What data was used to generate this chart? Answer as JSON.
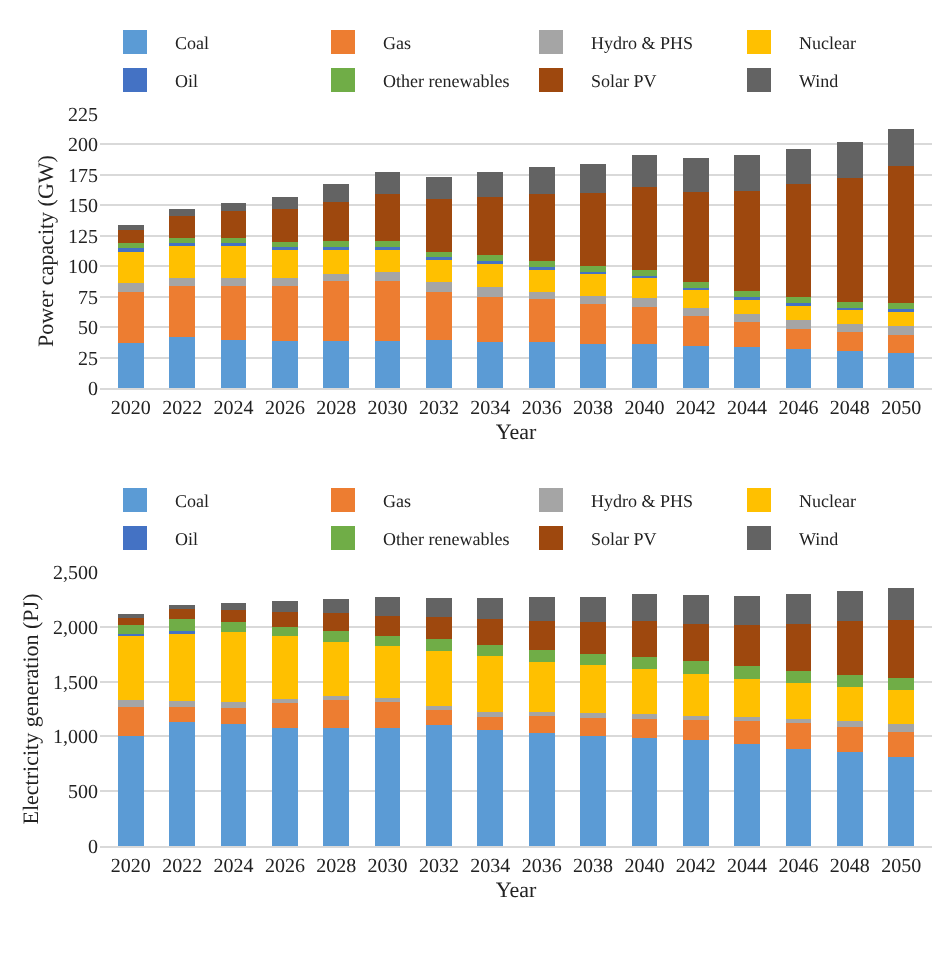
{
  "chart_data": [
    {
      "type": "bar",
      "stacked": true,
      "xlabel": "Year",
      "ylabel": "Power capacity (GW)",
      "categories": [
        "2020",
        "2022",
        "2024",
        "2026",
        "2028",
        "2030",
        "2032",
        "2034",
        "2036",
        "2038",
        "2040",
        "2042",
        "2044",
        "2046",
        "2048",
        "2050"
      ],
      "ylim": [
        0,
        225
      ],
      "yticks": [
        0,
        25,
        50,
        75,
        100,
        125,
        150,
        175,
        200,
        225
      ],
      "grid": "y",
      "legend": "top",
      "series": [
        {
          "name": "Coal",
          "color": "#5b9bd5",
          "values": [
            37,
            42,
            40,
            39,
            39,
            39,
            40,
            38,
            38,
            36,
            36,
            35,
            34,
            32,
            31,
            29
          ]
        },
        {
          "name": "Gas",
          "color": "#ed7d31",
          "values": [
            42,
            42,
            44,
            45,
            49,
            49,
            39,
            37,
            35,
            33,
            31,
            24,
            20,
            17,
            15,
            15
          ]
        },
        {
          "name": "Hydro & PHS",
          "color": "#a5a5a5",
          "values": [
            7,
            6,
            6,
            6,
            6,
            7,
            8,
            8,
            6,
            7,
            7,
            7,
            7,
            7,
            7,
            7
          ]
        },
        {
          "name": "Nuclear",
          "color": "#ffc000",
          "values": [
            26,
            28,
            28,
            25,
            21,
            20,
            20,
            20,
            19,
            18,
            17,
            15,
            13,
            13,
            12,
            13
          ]
        },
        {
          "name": "Oil",
          "color": "#4472c4",
          "values": [
            4,
            1,
            1,
            1,
            1,
            1,
            1,
            1,
            1,
            1,
            1,
            1,
            1,
            1,
            1,
            1
          ]
        },
        {
          "name": "Other renewables",
          "color": "#70ad47",
          "values": [
            3,
            4,
            4,
            4,
            5,
            5,
            4,
            5,
            5,
            5,
            5,
            5,
            5,
            5,
            5,
            5
          ]
        },
        {
          "name": "Solar PV",
          "color": "#9e480e",
          "values": [
            12,
            18,
            22,
            27,
            32,
            38,
            43,
            48,
            55,
            60,
            68,
            74,
            82,
            92,
            101,
            112
          ]
        },
        {
          "name": "Wind",
          "color": "#636363",
          "values": [
            3,
            6,
            7,
            10,
            14,
            18,
            18,
            20,
            22,
            24,
            26,
            28,
            29,
            29,
            30,
            30
          ]
        }
      ]
    },
    {
      "type": "bar",
      "stacked": true,
      "xlabel": "Year",
      "ylabel": "Electricity generation (PJ)",
      "categories": [
        "2020",
        "2022",
        "2024",
        "2026",
        "2028",
        "2030",
        "2032",
        "2034",
        "2036",
        "2038",
        "2040",
        "2042",
        "2044",
        "2046",
        "2048",
        "2050"
      ],
      "ylim": [
        0,
        2500
      ],
      "yticks": [
        0,
        {
          "value": 500,
          "label": "500"
        },
        {
          "value": 1000,
          "label": "1,000"
        },
        {
          "value": 1500,
          "label": "1,500"
        },
        {
          "value": 2000,
          "label": "2,000"
        },
        {
          "value": 2500,
          "label": "2,500"
        }
      ],
      "grid": "y",
      "legend": "top",
      "series": [
        {
          "name": "Coal",
          "color": "#5b9bd5",
          "values": [
            1000,
            1130,
            1110,
            1080,
            1080,
            1080,
            1100,
            1060,
            1030,
            1000,
            990,
            970,
            930,
            890,
            860,
            810
          ]
        },
        {
          "name": "Gas",
          "color": "#ed7d31",
          "values": [
            270,
            140,
            150,
            220,
            250,
            230,
            140,
            120,
            160,
            170,
            170,
            180,
            210,
            230,
            230,
            230
          ]
        },
        {
          "name": "Hydro & PHS",
          "color": "#a5a5a5",
          "values": [
            60,
            50,
            50,
            40,
            40,
            40,
            40,
            40,
            30,
            40,
            40,
            40,
            40,
            40,
            50,
            70
          ]
        },
        {
          "name": "Nuclear",
          "color": "#ffc000",
          "values": [
            590,
            630,
            640,
            570,
            490,
            470,
            500,
            510,
            460,
            440,
            410,
            380,
            340,
            330,
            310,
            310
          ]
        },
        {
          "name": "Oil",
          "color": "#4472c4",
          "values": [
            10,
            10,
            0,
            0,
            0,
            0,
            0,
            0,
            0,
            0,
            0,
            0,
            0,
            0,
            0,
            0
          ]
        },
        {
          "name": "Other renewables",
          "color": "#70ad47",
          "values": [
            80,
            110,
            90,
            90,
            100,
            90,
            110,
            100,
            110,
            100,
            110,
            120,
            120,
            110,
            110,
            110
          ]
        },
        {
          "name": "Solar PV",
          "color": "#9e480e",
          "values": [
            80,
            90,
            110,
            130,
            160,
            190,
            200,
            240,
            260,
            290,
            330,
            330,
            370,
            420,
            490,
            530
          ]
        },
        {
          "name": "Wind",
          "color": "#636363",
          "values": [
            20,
            40,
            60,
            100,
            130,
            170,
            170,
            190,
            220,
            230,
            250,
            270,
            270,
            280,
            270,
            290
          ]
        }
      ]
    }
  ]
}
